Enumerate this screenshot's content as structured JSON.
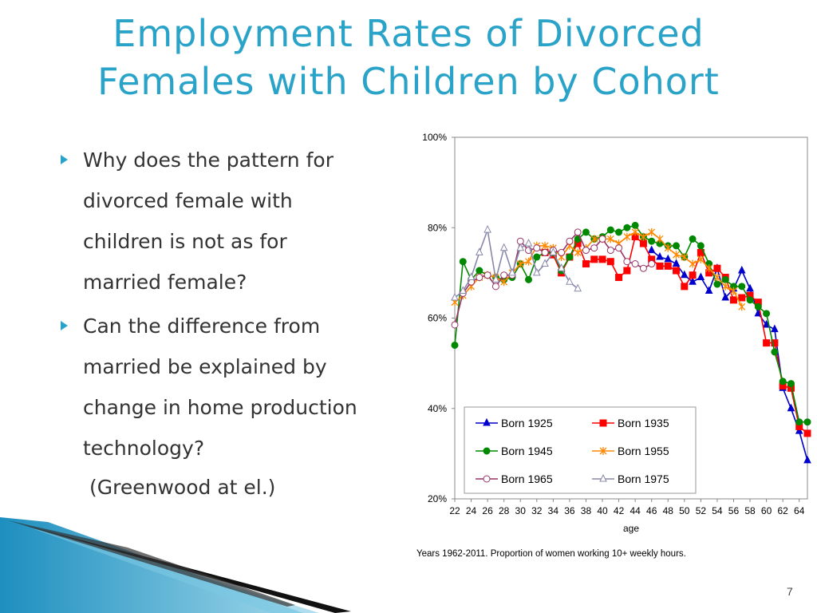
{
  "slide": {
    "title_line1": "Employment Rates of Divorced",
    "title_line2": "Females with Children by Cohort",
    "bullets": [
      {
        "lines": [
          "Why does the pattern for",
          "divorced female with",
          "children is not as for",
          "married female?"
        ]
      },
      {
        "lines": [
          "Can the difference from",
          "married be explained by",
          "change in home production",
          "technology?"
        ]
      }
    ],
    "citation": "(Greenwood at el.)",
    "note": "Years 1962-2011. Proportion of women working 10+ weekly hours.",
    "page_number": "7",
    "accent_color": "#2aa3c8"
  },
  "chart_data": {
    "type": "line",
    "xlabel": "age",
    "ylabel": "",
    "ylim": [
      0.2,
      1.0
    ],
    "xlim": [
      22,
      65
    ],
    "y_ticks": [
      "20%",
      "40%",
      "60%",
      "80%",
      "100%"
    ],
    "x_ticks": [
      "22",
      "24",
      "26",
      "28",
      "30",
      "32",
      "34",
      "36",
      "38",
      "40",
      "42",
      "44",
      "46",
      "48",
      "50",
      "52",
      "54",
      "56",
      "58",
      "60",
      "62",
      "64"
    ],
    "grid": false,
    "legend_position": "bottom-inside",
    "series": [
      {
        "name": "Born 1925",
        "color": "#0000cc",
        "marker": "triangle-filled",
        "points": [
          [
            46,
            0.75
          ],
          [
            47,
            0.735
          ],
          [
            48,
            0.73
          ],
          [
            49,
            0.72
          ],
          [
            50,
            0.695
          ],
          [
            51,
            0.68
          ],
          [
            52,
            0.69
          ],
          [
            53,
            0.66
          ],
          [
            54,
            0.71
          ],
          [
            55,
            0.645
          ],
          [
            56,
            0.665
          ],
          [
            57,
            0.705
          ],
          [
            58,
            0.665
          ],
          [
            59,
            0.61
          ],
          [
            60,
            0.585
          ],
          [
            61,
            0.575
          ],
          [
            62,
            0.445
          ],
          [
            63,
            0.4
          ],
          [
            64,
            0.35
          ],
          [
            65,
            0.285
          ]
        ]
      },
      {
        "name": "Born 1935",
        "color": "#ff0000",
        "marker": "square-filled",
        "points": [
          [
            33,
            0.745
          ],
          [
            34,
            0.74
          ],
          [
            35,
            0.7
          ],
          [
            36,
            0.735
          ],
          [
            37,
            0.765
          ],
          [
            38,
            0.72
          ],
          [
            39,
            0.73
          ],
          [
            40,
            0.73
          ],
          [
            41,
            0.725
          ],
          [
            42,
            0.69
          ],
          [
            43,
            0.705
          ],
          [
            44,
            0.78
          ],
          [
            45,
            0.765
          ],
          [
            46,
            0.73
          ],
          [
            47,
            0.715
          ],
          [
            48,
            0.715
          ],
          [
            49,
            0.705
          ],
          [
            50,
            0.67
          ],
          [
            51,
            0.695
          ],
          [
            52,
            0.745
          ],
          [
            53,
            0.7
          ],
          [
            54,
            0.71
          ],
          [
            55,
            0.69
          ],
          [
            56,
            0.64
          ],
          [
            57,
            0.645
          ],
          [
            58,
            0.65
          ],
          [
            59,
            0.635
          ],
          [
            60,
            0.545
          ],
          [
            61,
            0.545
          ],
          [
            62,
            0.45
          ],
          [
            63,
            0.445
          ],
          [
            64,
            0.36
          ],
          [
            65,
            0.345
          ]
        ]
      },
      {
        "name": "Born 1945",
        "color": "#008800",
        "marker": "circle-filled",
        "points": [
          [
            22,
            0.54
          ],
          [
            23,
            0.725
          ],
          [
            24,
            0.685
          ],
          [
            25,
            0.705
          ],
          [
            26,
            0.695
          ],
          [
            27,
            0.69
          ],
          [
            28,
            0.685
          ],
          [
            29,
            0.69
          ],
          [
            30,
            0.72
          ],
          [
            31,
            0.685
          ],
          [
            32,
            0.735
          ],
          [
            33,
            0.745
          ],
          [
            34,
            0.745
          ],
          [
            35,
            0.705
          ],
          [
            36,
            0.735
          ],
          [
            37,
            0.775
          ],
          [
            38,
            0.79
          ],
          [
            39,
            0.775
          ],
          [
            40,
            0.78
          ],
          [
            41,
            0.795
          ],
          [
            42,
            0.79
          ],
          [
            43,
            0.8
          ],
          [
            44,
            0.805
          ],
          [
            45,
            0.78
          ],
          [
            46,
            0.77
          ],
          [
            47,
            0.765
          ],
          [
            48,
            0.76
          ],
          [
            49,
            0.76
          ],
          [
            50,
            0.735
          ],
          [
            51,
            0.775
          ],
          [
            52,
            0.76
          ],
          [
            53,
            0.72
          ],
          [
            54,
            0.675
          ],
          [
            55,
            0.685
          ],
          [
            56,
            0.67
          ],
          [
            57,
            0.67
          ],
          [
            58,
            0.64
          ],
          [
            59,
            0.625
          ],
          [
            60,
            0.61
          ],
          [
            61,
            0.525
          ],
          [
            62,
            0.46
          ],
          [
            63,
            0.455
          ],
          [
            64,
            0.37
          ],
          [
            65,
            0.37
          ]
        ]
      },
      {
        "name": "Born 1955",
        "color": "#ff8800",
        "marker": "star",
        "points": [
          [
            22,
            0.635
          ],
          [
            23,
            0.65
          ],
          [
            24,
            0.67
          ],
          [
            25,
            0.69
          ],
          [
            26,
            0.695
          ],
          [
            27,
            0.69
          ],
          [
            28,
            0.68
          ],
          [
            29,
            0.7
          ],
          [
            30,
            0.72
          ],
          [
            31,
            0.725
          ],
          [
            32,
            0.76
          ],
          [
            33,
            0.76
          ],
          [
            34,
            0.755
          ],
          [
            35,
            0.735
          ],
          [
            36,
            0.76
          ],
          [
            37,
            0.745
          ],
          [
            38,
            0.755
          ],
          [
            39,
            0.775
          ],
          [
            40,
            0.775
          ],
          [
            41,
            0.775
          ],
          [
            42,
            0.765
          ],
          [
            43,
            0.78
          ],
          [
            44,
            0.79
          ],
          [
            45,
            0.78
          ],
          [
            46,
            0.79
          ],
          [
            47,
            0.775
          ],
          [
            48,
            0.755
          ],
          [
            49,
            0.74
          ],
          [
            50,
            0.735
          ],
          [
            51,
            0.72
          ],
          [
            52,
            0.73
          ],
          [
            53,
            0.71
          ],
          [
            54,
            0.69
          ],
          [
            55,
            0.67
          ],
          [
            56,
            0.66
          ],
          [
            57,
            0.625
          ]
        ]
      },
      {
        "name": "Born  1965",
        "color": "#993366",
        "marker": "circle-open",
        "points": [
          [
            22,
            0.585
          ],
          [
            23,
            0.655
          ],
          [
            24,
            0.68
          ],
          [
            25,
            0.69
          ],
          [
            26,
            0.695
          ],
          [
            27,
            0.67
          ],
          [
            28,
            0.695
          ],
          [
            29,
            0.695
          ],
          [
            30,
            0.77
          ],
          [
            31,
            0.75
          ],
          [
            32,
            0.755
          ],
          [
            33,
            0.745
          ],
          [
            34,
            0.75
          ],
          [
            35,
            0.745
          ],
          [
            36,
            0.77
          ],
          [
            37,
            0.79
          ],
          [
            38,
            0.75
          ],
          [
            39,
            0.755
          ],
          [
            40,
            0.775
          ],
          [
            41,
            0.75
          ],
          [
            42,
            0.755
          ],
          [
            43,
            0.725
          ],
          [
            44,
            0.72
          ],
          [
            45,
            0.71
          ],
          [
            46,
            0.72
          ]
        ]
      },
      {
        "name": "Born 1975",
        "color": "#8888aa",
        "marker": "triangle-open",
        "points": [
          [
            22,
            0.645
          ],
          [
            23,
            0.66
          ],
          [
            24,
            0.69
          ],
          [
            25,
            0.745
          ],
          [
            26,
            0.795
          ],
          [
            27,
            0.685
          ],
          [
            28,
            0.755
          ],
          [
            29,
            0.7
          ],
          [
            30,
            0.755
          ],
          [
            31,
            0.765
          ],
          [
            32,
            0.7
          ],
          [
            33,
            0.72
          ],
          [
            34,
            0.745
          ],
          [
            35,
            0.71
          ],
          [
            36,
            0.68
          ],
          [
            37,
            0.665
          ]
        ]
      }
    ]
  }
}
